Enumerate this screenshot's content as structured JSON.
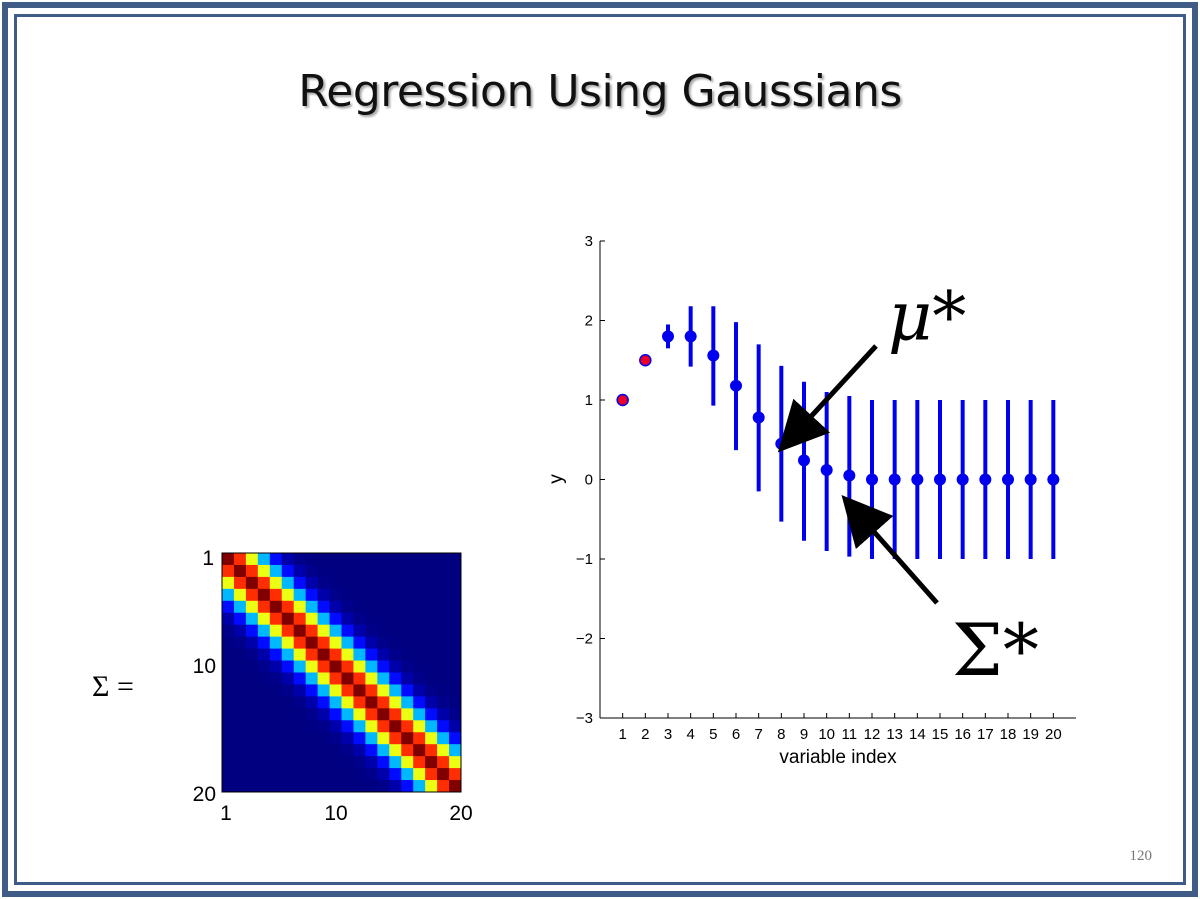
{
  "slide": {
    "title": "Regression Using Gaussians",
    "number": "120"
  },
  "colors": {
    "frame": "#3e5c85",
    "series": "#0000ee",
    "observed_fill": "#e8002a"
  },
  "matrix": {
    "label": "Σ =",
    "size": 20,
    "tick_labels_y": [
      "1",
      "10",
      "20"
    ],
    "tick_labels_x": [
      "1",
      "10",
      "20"
    ],
    "colormap": "jet",
    "description_bandwidth": 4
  },
  "chart_data": {
    "type": "scatter",
    "xlabel": "variable index",
    "ylabel": "y",
    "xlim": [
      0,
      21
    ],
    "ylim": [
      -3,
      3
    ],
    "x_ticks": [
      "1",
      "2",
      "3",
      "4",
      "5",
      "6",
      "7",
      "8",
      "9",
      "10",
      "11",
      "12",
      "13",
      "14",
      "15",
      "16",
      "17",
      "18",
      "19",
      "20"
    ],
    "y_ticks": [
      "3",
      "2",
      "1",
      "0",
      "−1",
      "−2",
      "−3"
    ],
    "y_tick_values": [
      3,
      2,
      1,
      0,
      -1,
      -2,
      -3
    ],
    "observed": [
      {
        "x": 1,
        "y": 1.0
      },
      {
        "x": 2,
        "y": 1.5
      }
    ],
    "predicted": [
      {
        "x": 3,
        "y": 1.8,
        "lo": 1.65,
        "hi": 1.95
      },
      {
        "x": 4,
        "y": 1.8,
        "lo": 1.42,
        "hi": 2.18
      },
      {
        "x": 5,
        "y": 1.56,
        "lo": 0.93,
        "hi": 2.18
      },
      {
        "x": 6,
        "y": 1.18,
        "lo": 0.37,
        "hi": 1.98
      },
      {
        "x": 7,
        "y": 0.78,
        "lo": -0.15,
        "hi": 1.7
      },
      {
        "x": 8,
        "y": 0.45,
        "lo": -0.53,
        "hi": 1.43
      },
      {
        "x": 9,
        "y": 0.24,
        "lo": -0.77,
        "hi": 1.23
      },
      {
        "x": 10,
        "y": 0.12,
        "lo": -0.9,
        "hi": 1.1
      },
      {
        "x": 11,
        "y": 0.05,
        "lo": -0.97,
        "hi": 1.05
      },
      {
        "x": 12,
        "y": 0.0,
        "lo": -1.0,
        "hi": 1.0
      },
      {
        "x": 13,
        "y": 0.0,
        "lo": -1.0,
        "hi": 1.0
      },
      {
        "x": 14,
        "y": 0.0,
        "lo": -1.0,
        "hi": 1.0
      },
      {
        "x": 15,
        "y": 0.0,
        "lo": -1.0,
        "hi": 1.0
      },
      {
        "x": 16,
        "y": 0.0,
        "lo": -1.0,
        "hi": 1.0
      },
      {
        "x": 17,
        "y": 0.0,
        "lo": -1.0,
        "hi": 1.0
      },
      {
        "x": 18,
        "y": 0.0,
        "lo": -1.0,
        "hi": 1.0
      },
      {
        "x": 19,
        "y": 0.0,
        "lo": -1.0,
        "hi": 1.0
      },
      {
        "x": 20,
        "y": 0.0,
        "lo": -1.0,
        "hi": 1.0
      }
    ],
    "annotations": {
      "mean_label": "μ*",
      "cov_label": "Σ*"
    }
  }
}
